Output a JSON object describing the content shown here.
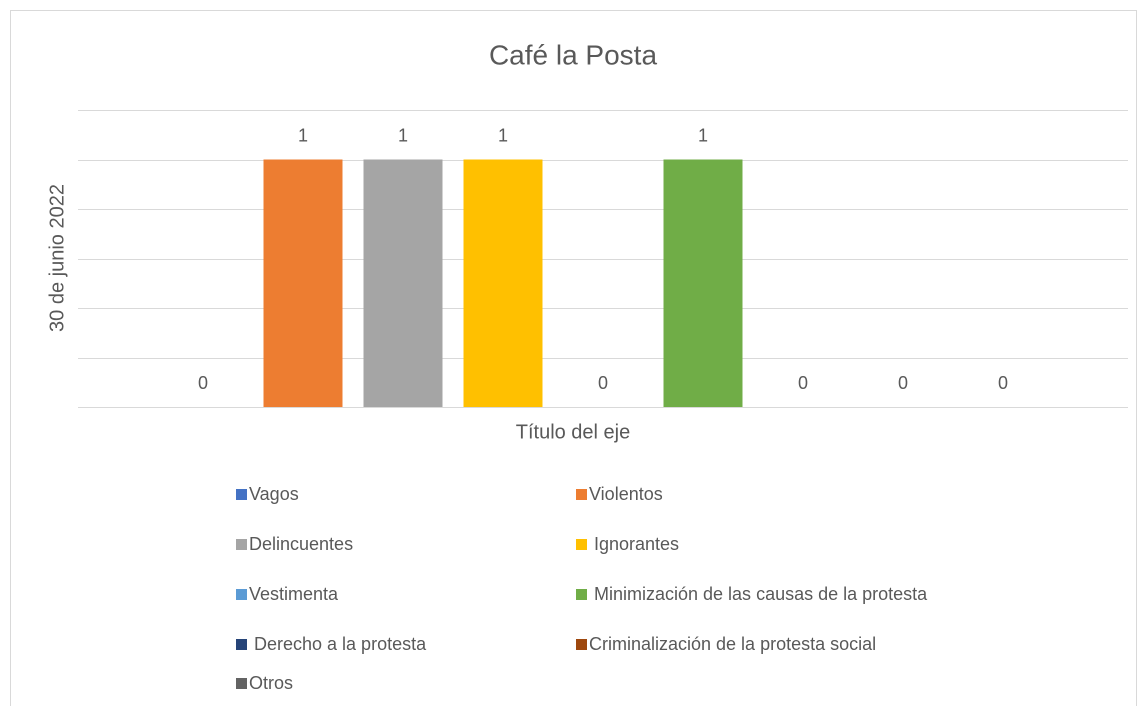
{
  "chart_data": {
    "type": "bar",
    "title": "Café la Posta",
    "y_label": "30 de junio 2022",
    "x_label": "Título del eje",
    "ylim": [
      0,
      1.2
    ],
    "yticks": [
      0,
      0.2,
      0.4,
      0.6,
      0.8,
      1,
      1.2
    ],
    "grid": true,
    "legend": "bottom",
    "series": [
      {
        "name": "Vagos",
        "color": "#4472c4",
        "values": [
          0
        ]
      },
      {
        "name": "Violentos",
        "color": "#ed7d31",
        "values": [
          1
        ]
      },
      {
        "name": "Delincuentes",
        "color": "#a5a5a5",
        "values": [
          1
        ]
      },
      {
        "name": " Ignorantes",
        "color": "#ffc000",
        "values": [
          1
        ]
      },
      {
        "name": "Vestimenta",
        "color": "#5b9bd5",
        "values": [
          0
        ]
      },
      {
        "name": " Minimización de las causas de la protesta",
        "color": "#70ad47",
        "values": [
          1
        ]
      },
      {
        "name": " Derecho a la protesta",
        "color": "#264478",
        "values": [
          0
        ]
      },
      {
        "name": "Criminalización de la protesta social",
        "color": "#9e480e",
        "values": [
          0
        ]
      },
      {
        "name": "Otros",
        "color": "#636363",
        "values": [
          0
        ]
      }
    ]
  }
}
